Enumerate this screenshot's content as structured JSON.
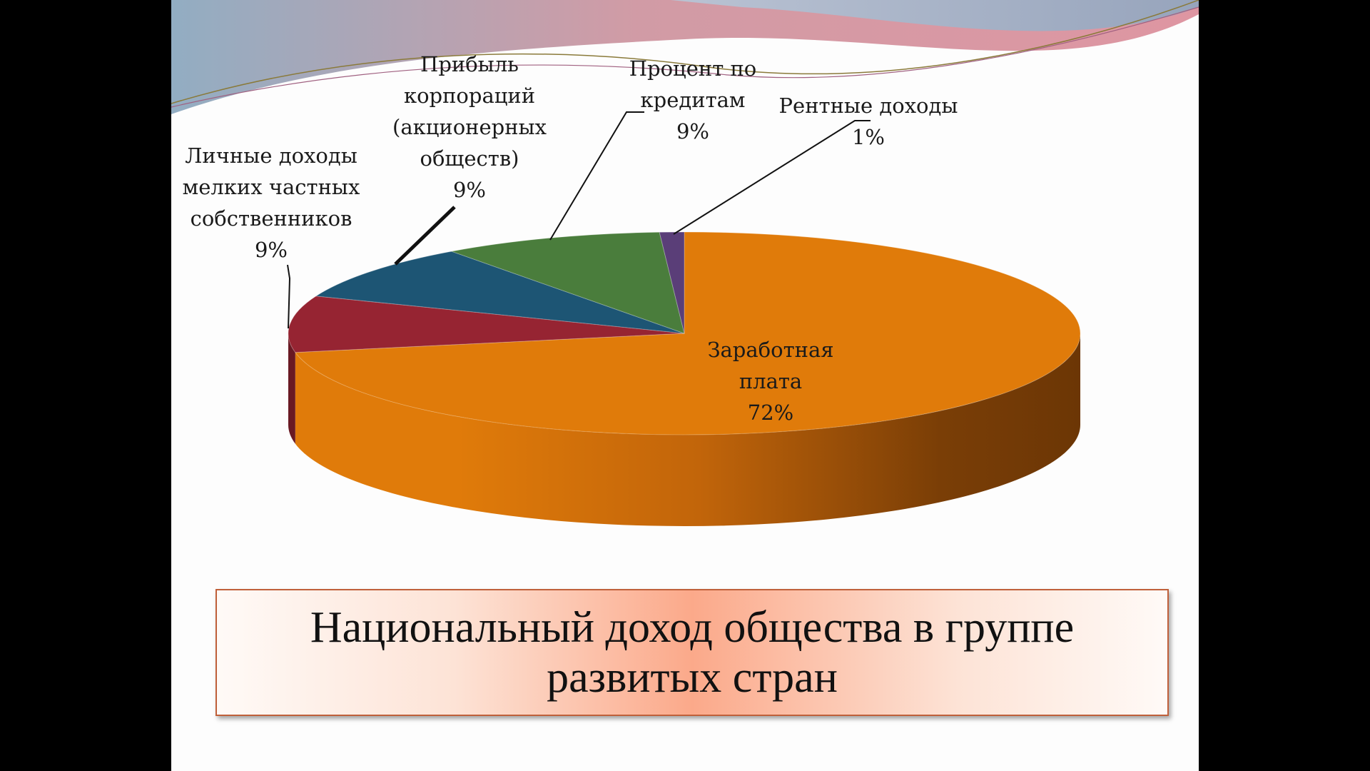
{
  "slide": {
    "title": "Национальный доход общества в группе развитых стран"
  },
  "colors": {
    "wages": "#e07b0a",
    "personal": "#962432",
    "profit": "#1d5574",
    "interest": "#4a7d3c",
    "rent": "#5a3e78"
  },
  "chart_data": {
    "type": "pie",
    "title": "",
    "style": "3d-pie",
    "slices": [
      {
        "key": "wages",
        "label": "Заработная плата",
        "label_lines": [
          "Заработная",
          "плата"
        ],
        "value": 72,
        "value_label": "72%"
      },
      {
        "key": "personal",
        "label": "Личные доходы мелких частных собственников",
        "label_lines": [
          "Личные доходы",
          "мелких частных",
          "собственников"
        ],
        "value": 9,
        "value_label": "9%"
      },
      {
        "key": "profit",
        "label": "Прибыль корпораций (акционерных обществ)",
        "label_lines": [
          "Прибыль",
          "корпораций",
          "(акционерных",
          "обществ)"
        ],
        "value": 9,
        "value_label": "9%"
      },
      {
        "key": "interest",
        "label": "Процент по кредитам",
        "label_lines": [
          "Процент по",
          "кредитам"
        ],
        "value": 9,
        "value_label": "9%"
      },
      {
        "key": "rent",
        "label": "Рентные доходы",
        "label_lines": [
          "Рентные доходы"
        ],
        "value": 1,
        "value_label": "1%"
      }
    ]
  }
}
